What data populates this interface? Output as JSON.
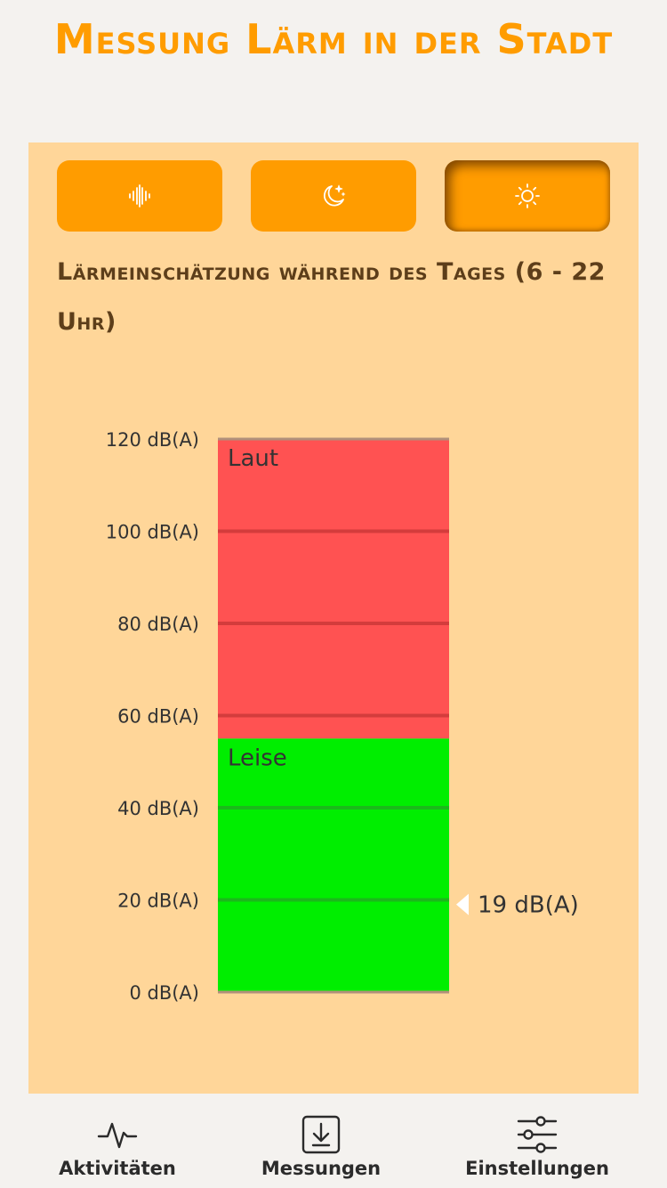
{
  "app": {
    "title": "Messung Lärm in der Stadt"
  },
  "modes": [
    {
      "name": "sound-wave",
      "icon": "sound-wave-icon",
      "active": false
    },
    {
      "name": "night",
      "icon": "moon-stars-icon",
      "active": false
    },
    {
      "name": "day",
      "icon": "sun-icon",
      "active": true
    }
  ],
  "section": {
    "title": "Lärmeinschätzung während des Tages (6 - 22 Uhr)"
  },
  "chart_data": {
    "type": "bar",
    "orientation": "vertical",
    "ylim": [
      0,
      120
    ],
    "ticks": [
      {
        "value": 120,
        "label": "120 dB(A)"
      },
      {
        "value": 100,
        "label": "100 dB(A)"
      },
      {
        "value": 80,
        "label": "80 dB(A)"
      },
      {
        "value": 60,
        "label": "60 dB(A)"
      },
      {
        "value": 40,
        "label": "40 dB(A)"
      },
      {
        "value": 20,
        "label": "20 dB(A)"
      },
      {
        "value": 0,
        "label": "0 dB(A)"
      }
    ],
    "zones": [
      {
        "name": "loud",
        "label": "Laut",
        "from": 55,
        "to": 120,
        "color": "#ff5252"
      },
      {
        "name": "quiet",
        "label": "Leise",
        "from": 0,
        "to": 55,
        "color": "#00ee00"
      }
    ],
    "marker": {
      "value": 19,
      "label": "19 dB(A)"
    }
  },
  "nav": {
    "items": [
      {
        "name": "activities",
        "label": "Aktivitäten",
        "icon": "activity-icon"
      },
      {
        "name": "measurements",
        "label": "Messungen",
        "icon": "download-box-icon"
      },
      {
        "name": "settings",
        "label": "Einstellungen",
        "icon": "sliders-icon"
      }
    ]
  }
}
